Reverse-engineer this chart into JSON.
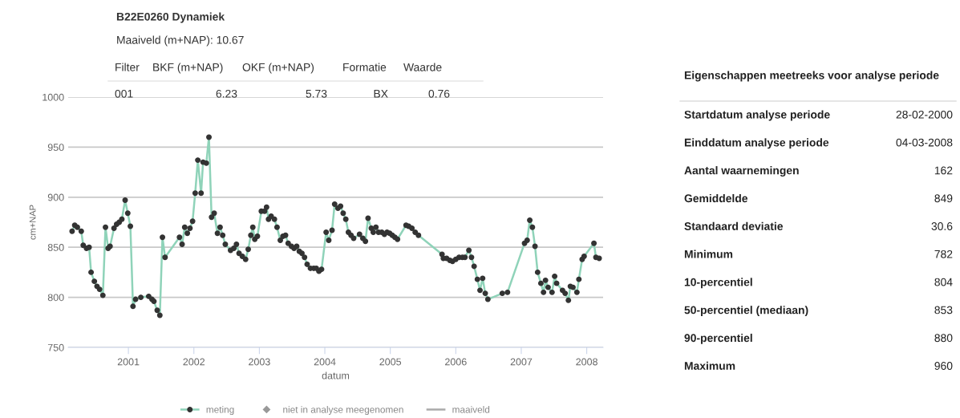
{
  "chart_data": {
    "type": "line",
    "title": "B22E0260 Dynamiek",
    "subtitle": "Maaiveld (m+NAP): 10.67",
    "xlabel": "datum",
    "ylabel": "cm+NAP",
    "xlim": [
      2000.08,
      2008.25
    ],
    "xticks": [
      2001,
      2002,
      2003,
      2004,
      2005,
      2006,
      2007,
      2008
    ],
    "ylim": [
      750,
      1000
    ],
    "yticks": [
      750,
      800,
      850,
      900,
      950,
      1000
    ],
    "grid": "y",
    "legend": "bottom",
    "marker": "circle",
    "line_style": "solid",
    "x": [
      2000.14,
      2000.18,
      2000.22,
      2000.28,
      2000.31,
      2000.36,
      2000.4,
      2000.43,
      2000.48,
      2000.52,
      2000.56,
      2000.61,
      2000.65,
      2000.69,
      2000.72,
      2000.78,
      2000.82,
      2000.86,
      2000.9,
      2000.95,
      2000.99,
      2001.03,
      2001.07,
      2001.11,
      2001.19,
      2001.31,
      2001.36,
      2001.39,
      2001.44,
      2001.48,
      2001.52,
      2001.56,
      2001.78,
      2001.82,
      2001.86,
      2001.9,
      2001.94,
      2001.98,
      2002.02,
      2002.06,
      2002.11,
      2002.14,
      2002.19,
      2002.23,
      2002.27,
      2002.31,
      2002.36,
      2002.4,
      2002.44,
      2002.48,
      2002.56,
      2002.61,
      2002.65,
      2002.69,
      2002.74,
      2002.79,
      2002.83,
      2002.87,
      2002.9,
      2002.93,
      2002.97,
      2003.03,
      2003.08,
      2003.11,
      2003.14,
      2003.18,
      2003.23,
      2003.27,
      2003.32,
      2003.36,
      2003.4,
      2003.44,
      2003.49,
      2003.53,
      2003.57,
      2003.61,
      2003.65,
      2003.69,
      2003.73,
      2003.78,
      2003.83,
      2003.87,
      2003.91,
      2003.95,
      2004.02,
      2004.06,
      2004.11,
      2004.15,
      2004.2,
      2004.24,
      2004.28,
      2004.32,
      2004.36,
      2004.4,
      2004.44,
      2004.53,
      2004.58,
      2004.62,
      2004.66,
      2004.71,
      2004.74,
      2004.78,
      2004.82,
      2004.87,
      2004.91,
      2004.95,
      2004.99,
      2005.03,
      2005.07,
      2005.11,
      2005.24,
      2005.28,
      2005.33,
      2005.38,
      2005.43,
      2005.79,
      2005.81,
      2005.86,
      2005.91,
      2005.95,
      2006.0,
      2006.05,
      2006.1,
      2006.14,
      2006.2,
      2006.24,
      2006.28,
      2006.33,
      2006.37,
      2006.41,
      2006.45,
      2006.49,
      2006.71,
      2006.79,
      2007.05,
      2007.09,
      2007.13,
      2007.17,
      2007.21,
      2007.25,
      2007.3,
      2007.34,
      2007.37,
      2007.41,
      2007.47,
      2007.51,
      2007.54,
      2007.63,
      2007.67,
      2007.72,
      2007.75,
      2007.79,
      2007.85,
      2007.88,
      2007.93,
      2007.96,
      2008.11,
      2008.14,
      2008.19
    ],
    "series": [
      {
        "name": "meting",
        "color": "#8fd3b9",
        "values": [
          866,
          872,
          870,
          866,
          852,
          849,
          850,
          825,
          816,
          811,
          808,
          802,
          870,
          849,
          851,
          869,
          873,
          875,
          878,
          897,
          884,
          871,
          791,
          798,
          800,
          801,
          798,
          796,
          787,
          782,
          860,
          840,
          860,
          853,
          870,
          864,
          869,
          876,
          904,
          937,
          904,
          935,
          934,
          960,
          880,
          884,
          864,
          870,
          862,
          853,
          847,
          849,
          853,
          844,
          841,
          838,
          848,
          862,
          870,
          858,
          861,
          886,
          886,
          890,
          878,
          881,
          878,
          870,
          857,
          861,
          862,
          854,
          851,
          849,
          851,
          846,
          844,
          840,
          833,
          829,
          829,
          829,
          826,
          828,
          865,
          857,
          867,
          893,
          889,
          891,
          884,
          878,
          865,
          862,
          859,
          863,
          859,
          856,
          879,
          869,
          865,
          870,
          865,
          865,
          863,
          865,
          864,
          862,
          860,
          858,
          872,
          871,
          869,
          865,
          862,
          843,
          839,
          839,
          837,
          836,
          838,
          840,
          840,
          840,
          847,
          840,
          831,
          818,
          807,
          819,
          804,
          798,
          804,
          805,
          854,
          857,
          877,
          870,
          851,
          825,
          814,
          805,
          817,
          810,
          805,
          821,
          814,
          807,
          804,
          797,
          811,
          810,
          805,
          818,
          838,
          841,
          854,
          840,
          839
        ]
      },
      {
        "name": "niet in analyse meegenomen",
        "type": "scatter",
        "color": "#999999",
        "marker": "diamond",
        "values": [
          null,
          null,
          null,
          null,
          null,
          null,
          null,
          null,
          null,
          null,
          null,
          null,
          null,
          null,
          null,
          null,
          null,
          null,
          null,
          null,
          null,
          null,
          null,
          null,
          null,
          null,
          null,
          null,
          null,
          null,
          null,
          null,
          null,
          null,
          null,
          null,
          null,
          null,
          null,
          null,
          null,
          null,
          null,
          null,
          null,
          null,
          null,
          null,
          null,
          null,
          null,
          null,
          null,
          null,
          null,
          null,
          null,
          null,
          null,
          null,
          null,
          null,
          null,
          null,
          null,
          null,
          null,
          null,
          null,
          null,
          null,
          null,
          null,
          null,
          null,
          null,
          null,
          null,
          null,
          null,
          null,
          null,
          null,
          null,
          null,
          null,
          null,
          null,
          null,
          null,
          null,
          null,
          null,
          null,
          null,
          null,
          null,
          null,
          null,
          null,
          null,
          null,
          null,
          null,
          null,
          null,
          null,
          null,
          null,
          null,
          null,
          null,
          null,
          null,
          null,
          null,
          null,
          null,
          null,
          null,
          null,
          null,
          null,
          null,
          null,
          null,
          null,
          null,
          null,
          null,
          null,
          null,
          null,
          null,
          null,
          null,
          null,
          null,
          null,
          null,
          null,
          null,
          null,
          null,
          null,
          null,
          null,
          null,
          null,
          null,
          null,
          null,
          null,
          null,
          null,
          null,
          null,
          null,
          null
        ]
      },
      {
        "name": "maaiveld",
        "type": "line",
        "color": "#aaaaaa",
        "marker": "none",
        "values": [
          null,
          null,
          null,
          null,
          null,
          null,
          null,
          null,
          null,
          null,
          null,
          null,
          null,
          null,
          null,
          null,
          null,
          null,
          null,
          null,
          null,
          null,
          null,
          null,
          null,
          null,
          null,
          null,
          null,
          null,
          null,
          null,
          null,
          null,
          null,
          null,
          null,
          null,
          null,
          null,
          null,
          null,
          null,
          null,
          null,
          null,
          null,
          null,
          null,
          null,
          null,
          null,
          null,
          null,
          null,
          null,
          null,
          null,
          null,
          null,
          null,
          null,
          null,
          null,
          null,
          null,
          null,
          null,
          null,
          null,
          null,
          null,
          null,
          null,
          null,
          null,
          null,
          null,
          null,
          null,
          null,
          null,
          null,
          null,
          null,
          null,
          null,
          null,
          null,
          null,
          null,
          null,
          null,
          null,
          null,
          null,
          null,
          null,
          null,
          null,
          null,
          null,
          null,
          null,
          null,
          null,
          null,
          null,
          null,
          null,
          null,
          null,
          null,
          null,
          null,
          null,
          null,
          null,
          null,
          null,
          null,
          null,
          null,
          null,
          null,
          null,
          null,
          null,
          null,
          null,
          null,
          null,
          null,
          null,
          null,
          null,
          null,
          null,
          null,
          null,
          null,
          null,
          null,
          null,
          null,
          null,
          null,
          null,
          null,
          null,
          null,
          null,
          null,
          null,
          null,
          null,
          null,
          null,
          null
        ]
      }
    ],
    "annotations": [
      "Filter",
      "BKF (m+NAP)",
      "OKF (m+NAP)",
      "Formatie",
      "Waarde",
      "001",
      "6.23",
      "5.73",
      "BX",
      "0.76",
      "Eigenschappen meetreeks voor analyse periode",
      "Startdatum analyse periode",
      "28-02-2000",
      "Einddatum analyse periode",
      "04-03-2008",
      "Aantal waarnemingen",
      "162",
      "Gemiddelde",
      "849",
      "Standaard deviatie",
      "30.6",
      "Minimum",
      "782",
      "10-percentiel",
      "804",
      "50-percentiel (mediaan)",
      "853",
      "90-percentiel",
      "880",
      "Maximum",
      "960"
    ]
  }
}
